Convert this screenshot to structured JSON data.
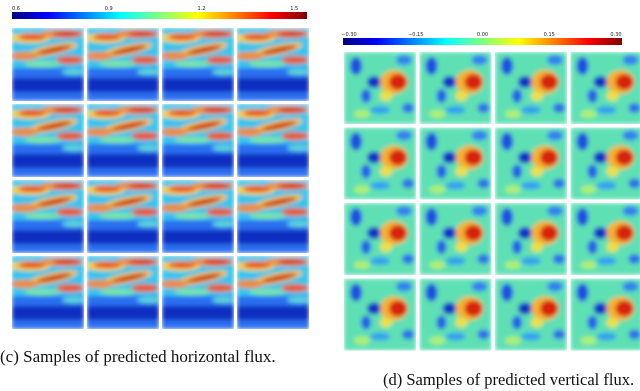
{
  "panels": [
    {
      "colorbar_ticks": [
        "0.6",
        "0.9",
        "1.2",
        "1.5"
      ],
      "caption": "(c) Samples of predicted horizontal flux."
    },
    {
      "colorbar_ticks": [
        "−0.30",
        "−0.15",
        "0.00",
        "0.15",
        "0.30"
      ],
      "caption": "(d) Samples of predicted vertical flux."
    }
  ]
}
